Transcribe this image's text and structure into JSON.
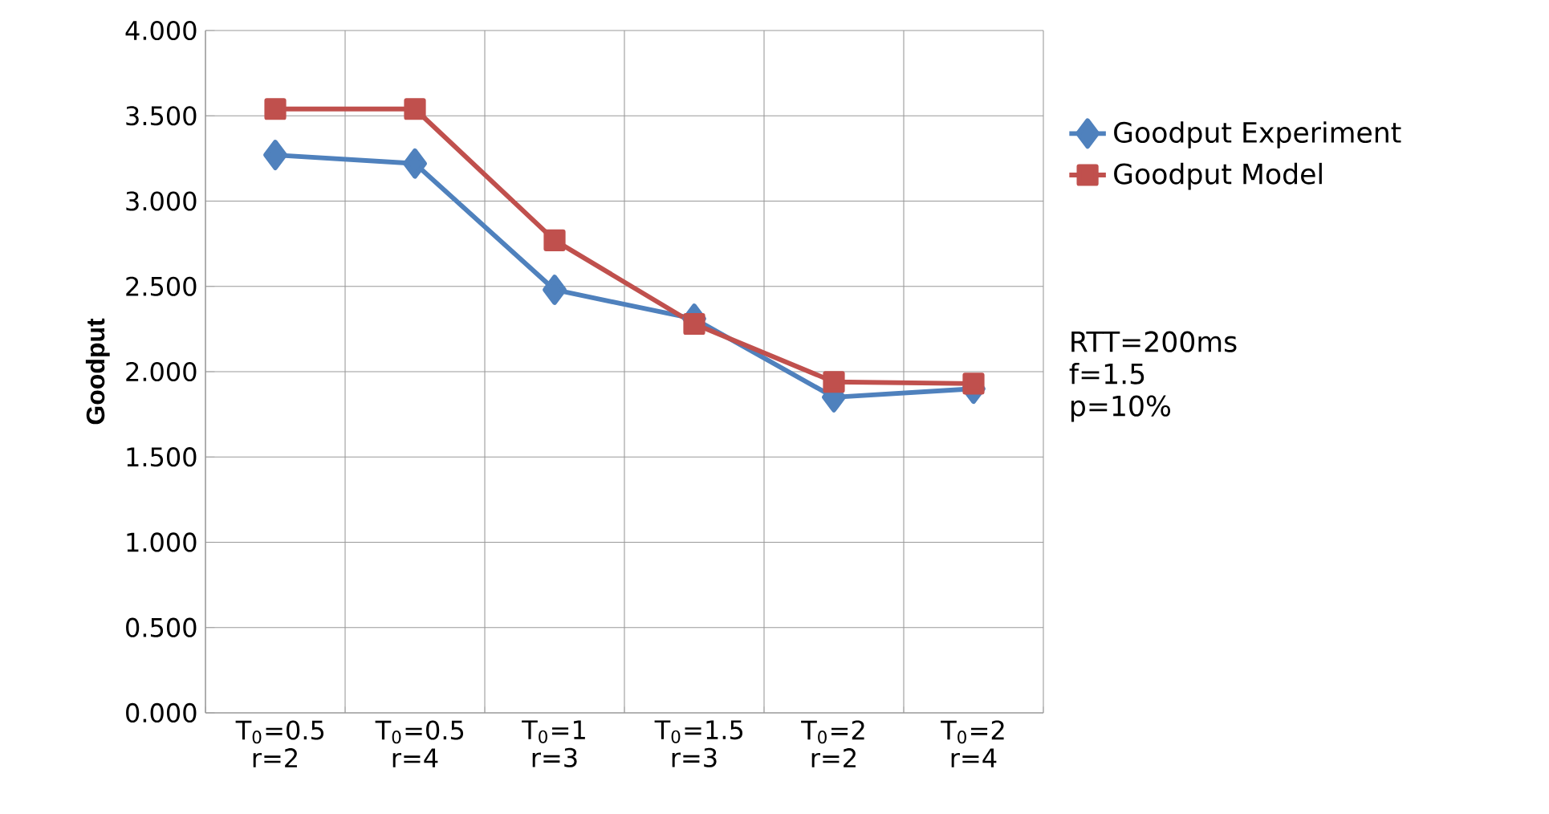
{
  "chart_data": {
    "type": "line",
    "ylabel": "Goodput",
    "categories": [
      "T$_{0}$=0.5 r=2",
      "T$_{0}$=0.5 r=4",
      "T$_{0}$=1 r=3",
      "T$_{0}$=1.5 r=3",
      "T$_{0}$=2 r=2",
      "T$_{0}$=2 r=4"
    ],
    "series": [
      {
        "name": "Goodput Experiment",
        "color": "#4f81bd",
        "marker": "diamond",
        "values": [
          3.27,
          3.22,
          2.48,
          2.31,
          1.85,
          1.9
        ]
      },
      {
        "name": "Goodput Model",
        "color": "#c0504d",
        "marker": "square",
        "values": [
          3.54,
          3.54,
          2.77,
          2.28,
          1.94,
          1.93
        ]
      }
    ],
    "ylim": [
      0,
      4
    ],
    "yticks": [
      {
        "value": 0,
        "label": "0.000"
      },
      {
        "value": 0.5,
        "label": "0.500"
      },
      {
        "value": 1,
        "label": "1.000"
      },
      {
        "value": 1.5,
        "label": "1.500"
      },
      {
        "value": 2,
        "label": "2.000"
      },
      {
        "value": 2.5,
        "label": "2.500"
      },
      {
        "value": 3,
        "label": "3.000"
      },
      {
        "value": 3.5,
        "label": "3.500"
      },
      {
        "value": 4,
        "label": "4.000"
      }
    ],
    "grid": true,
    "legend": "right",
    "annotations": [
      "RTT=200ms",
      "f=1.5",
      "p=10%"
    ]
  }
}
